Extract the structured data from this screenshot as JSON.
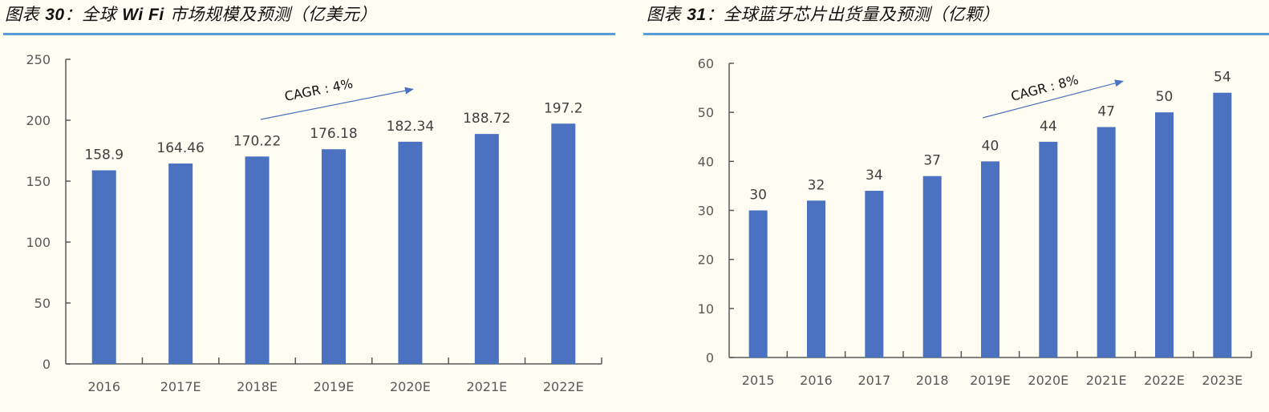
{
  "colors": {
    "background": "#fffcf2",
    "bar": "#4a72c0",
    "title_rule": "#5b9bd5",
    "axis": "#595959",
    "arrow": "#4a72c0"
  },
  "left": {
    "title_prefix": "图表 ",
    "title_number": "30",
    "title_colon": "：",
    "title_pre": "全球 ",
    "title_bold": "Wi Fi",
    "title_post": " 市场规模及预测（亿美元）",
    "cagr_label": "CAGR : 4%"
  },
  "right": {
    "title_prefix": "图表 ",
    "title_number": "31",
    "title_colon": "：",
    "title_post": "全球蓝牙芯片出货量及预测（亿颗）",
    "cagr_label": "CAGR : 8%"
  },
  "chart_data": [
    {
      "type": "bar",
      "title": "图表30：全球 Wi Fi 市场规模及预测（亿美元）",
      "categories": [
        "2016",
        "2017E",
        "2018E",
        "2019E",
        "2020E",
        "2021E",
        "2022E"
      ],
      "values": [
        158.9,
        164.46,
        170.22,
        176.18,
        182.34,
        188.72,
        197.2
      ],
      "value_labels": [
        "158.9",
        "164.46",
        "170.22",
        "176.18",
        "182.34",
        "188.72",
        "197.2"
      ],
      "xlabel": "",
      "ylabel": "",
      "ylim": [
        0,
        250
      ],
      "yticks": [
        "0",
        "50",
        "100",
        "150",
        "200",
        "250"
      ],
      "grid": false,
      "legend": null,
      "annotations": [
        {
          "text": "CAGR : 4%",
          "type": "arrow",
          "from": "2018E",
          "to": "2020E"
        }
      ]
    },
    {
      "type": "bar",
      "title": "图表31：全球蓝牙芯片出货量及预测（亿颗）",
      "categories": [
        "2015",
        "2016",
        "2017",
        "2018",
        "2019E",
        "2020E",
        "2021E",
        "2022E",
        "2023E"
      ],
      "values": [
        30,
        32,
        34,
        37,
        40,
        44,
        47,
        50,
        54
      ],
      "value_labels": [
        "30",
        "32",
        "34",
        "37",
        "40",
        "44",
        "47",
        "50",
        "54"
      ],
      "xlabel": "",
      "ylabel": "",
      "ylim": [
        0,
        60
      ],
      "yticks": [
        "0",
        "10",
        "20",
        "30",
        "40",
        "50",
        "60"
      ],
      "grid": false,
      "legend": null,
      "annotations": [
        {
          "text": "CAGR : 8%",
          "type": "arrow",
          "from": "2019E",
          "to": "2021E"
        }
      ]
    }
  ]
}
